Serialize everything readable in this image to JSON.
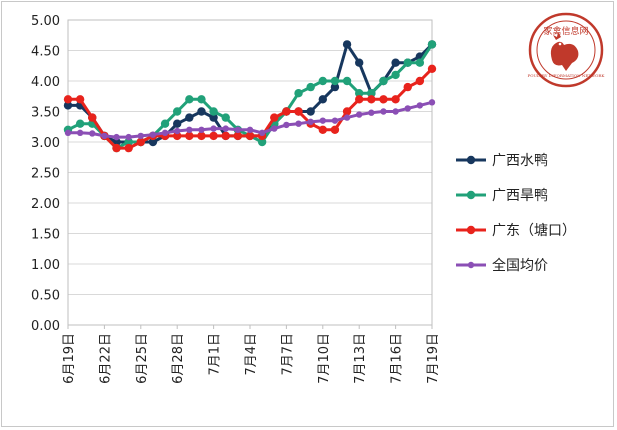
{
  "chart_data": {
    "type": "line",
    "title": "",
    "xlabel": "",
    "ylabel": "",
    "ylim": [
      0,
      5
    ],
    "ytick_labels": [
      "0.00",
      "0.50",
      "1.00",
      "1.50",
      "2.00",
      "2.50",
      "3.00",
      "3.50",
      "4.00",
      "4.50",
      "5.00"
    ],
    "x": [
      "6月19日",
      "6月20日",
      "6月21日",
      "6月22日",
      "6月23日",
      "6月24日",
      "6月25日",
      "6月26日",
      "6月27日",
      "6月28日",
      "6月29日",
      "6月30日",
      "7月1日",
      "7月2日",
      "7月3日",
      "7月4日",
      "7月5日",
      "7月6日",
      "7月7日",
      "7月8日",
      "7月9日",
      "7月10日",
      "7月11日",
      "7月12日",
      "7月13日",
      "7月14日",
      "7月15日",
      "7月16日",
      "7月17日",
      "7月18日",
      "7月19日"
    ],
    "xtick_labels": [
      "6月19日",
      "6月22日",
      "6月25日",
      "6月28日",
      "7月1日",
      "7月4日",
      "7月7日",
      "7月10日",
      "7月13日",
      "7月16日",
      "7月19日"
    ],
    "legend_position": "right",
    "grid": "horizontal",
    "series": [
      {
        "name": "广西水鸭",
        "color": "#17375e",
        "values": [
          3.6,
          3.6,
          3.4,
          3.1,
          3.0,
          3.0,
          3.0,
          3.0,
          3.1,
          3.3,
          3.4,
          3.5,
          3.4,
          3.1,
          3.1,
          3.1,
          3.1,
          3.3,
          3.5,
          3.5,
          3.5,
          3.7,
          3.9,
          4.6,
          4.3,
          3.8,
          4.0,
          4.3,
          4.3,
          4.4,
          4.6
        ]
      },
      {
        "name": "广西旱鸭",
        "color": "#21a179",
        "values": [
          3.2,
          3.3,
          3.3,
          3.1,
          2.9,
          3.0,
          3.0,
          3.1,
          3.3,
          3.5,
          3.7,
          3.7,
          3.5,
          3.4,
          3.2,
          3.1,
          3.0,
          3.3,
          3.5,
          3.8,
          3.9,
          4.0,
          4.0,
          4.0,
          3.8,
          3.8,
          4.0,
          4.1,
          4.3,
          4.3,
          4.6
        ]
      },
      {
        "name": "广东（塘口）",
        "color": "#e8231c",
        "values": [
          3.7,
          3.7,
          3.4,
          3.1,
          2.9,
          2.9,
          3.0,
          3.1,
          3.1,
          3.1,
          3.1,
          3.1,
          3.1,
          3.1,
          3.1,
          3.1,
          3.1,
          3.4,
          3.5,
          3.5,
          3.3,
          3.2,
          3.2,
          3.5,
          3.7,
          3.7,
          3.7,
          3.7,
          3.9,
          4.0,
          4.2
        ]
      },
      {
        "name": "全国均价",
        "color": "#8b4fb5",
        "values": [
          3.15,
          3.15,
          3.14,
          3.1,
          3.08,
          3.08,
          3.1,
          3.12,
          3.15,
          3.18,
          3.2,
          3.2,
          3.22,
          3.22,
          3.2,
          3.2,
          3.15,
          3.22,
          3.28,
          3.3,
          3.33,
          3.35,
          3.35,
          3.4,
          3.45,
          3.48,
          3.5,
          3.5,
          3.55,
          3.6,
          3.65
        ]
      }
    ]
  },
  "seal": {
    "lettering": "家禽信息网 POULTRY INFORMATION NETWORK",
    "color": "#c0392b"
  }
}
